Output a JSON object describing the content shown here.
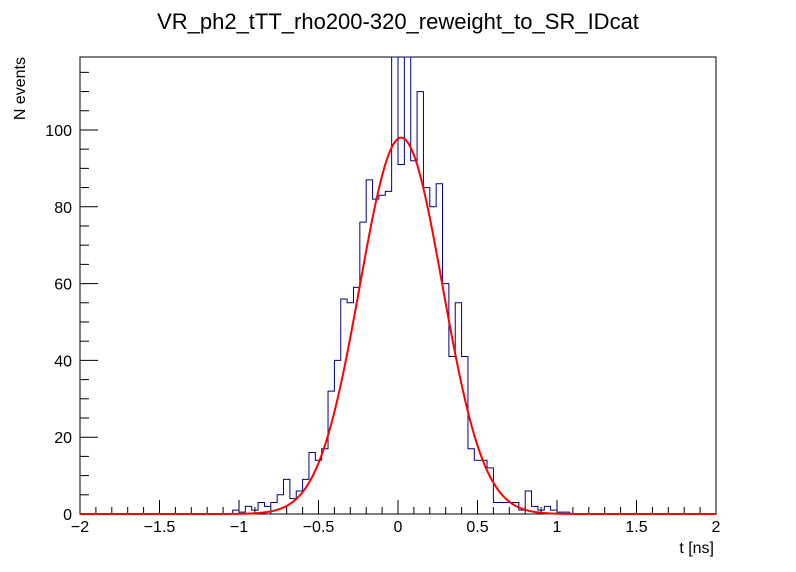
{
  "chart_data": {
    "type": "bar",
    "title": "VR_ph2_tTT_rho200-320_reweight_to_SR_IDcat",
    "xlabel": "t [ns]",
    "ylabel": "N events",
    "xlim": [
      -2,
      2
    ],
    "ylim": [
      0,
      119
    ],
    "x_ticks": [
      -2,
      -1.5,
      -1,
      -0.5,
      0,
      0.5,
      1,
      1.5,
      2
    ],
    "x_tick_labels": [
      "−2",
      "−1.5",
      "−1",
      "−0.5",
      "0",
      "0.5",
      "1",
      "1.5",
      "2"
    ],
    "y_ticks": [
      0,
      20,
      40,
      60,
      80,
      100
    ],
    "y_tick_labels": [
      "0",
      "20",
      "40",
      "60",
      "80",
      "100"
    ],
    "series": [
      {
        "name": "histogram",
        "style": "step",
        "color": "#000080",
        "bin_start": -2.0,
        "bin_width": 0.04,
        "values": [
          0,
          0,
          0,
          0,
          0,
          0,
          0,
          0,
          0,
          0,
          0,
          0,
          0,
          0,
          0,
          0,
          0,
          0,
          0,
          0,
          0,
          0,
          0,
          0,
          1,
          0.5,
          2,
          1,
          3,
          2,
          3,
          5,
          9,
          4,
          6,
          9,
          16,
          14,
          17,
          32,
          40,
          56,
          55,
          59,
          76,
          87,
          82,
          83,
          84,
          119,
          91,
          120,
          92,
          110,
          85,
          80,
          86,
          60,
          41,
          55,
          41,
          17,
          14,
          14,
          12,
          3,
          3,
          3,
          3,
          1,
          6,
          2,
          1,
          2,
          1,
          0.5,
          0.5,
          0,
          0,
          0,
          0,
          0,
          0,
          0,
          0,
          0,
          0,
          0,
          0,
          0,
          0,
          0,
          0,
          0,
          0,
          0,
          0,
          0,
          0,
          0
        ]
      },
      {
        "name": "gaussian fit",
        "style": "line",
        "color": "#ff0000",
        "function": "gaussian",
        "amplitude": 98,
        "mean": 0.02,
        "sigma": 0.26
      }
    ]
  }
}
